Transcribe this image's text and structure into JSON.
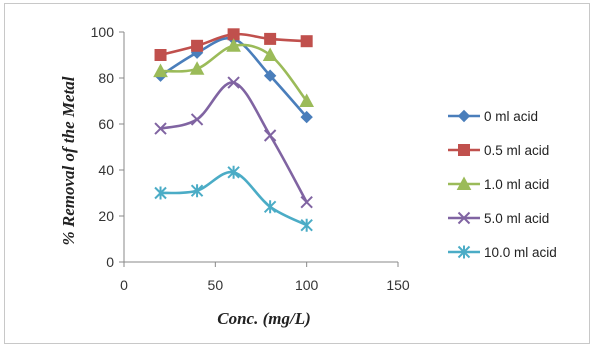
{
  "chart_data": {
    "type": "line",
    "title": "",
    "xlabel": "Conc. (mg/L)",
    "ylabel": "% Removal of the Metal",
    "xlim": [
      0,
      150
    ],
    "ylim": [
      0,
      100
    ],
    "xticks": [
      0,
      50,
      100,
      150
    ],
    "yticks": [
      0,
      20,
      40,
      60,
      80,
      100
    ],
    "grid": false,
    "legend_position": "right",
    "x": [
      20,
      40,
      60,
      80,
      100
    ],
    "series": [
      {
        "name": "0 ml acid",
        "values": [
          81,
          91,
          97,
          81,
          63
        ],
        "color": "#4a7ebb",
        "marker": "diamond"
      },
      {
        "name": "0.5 ml acid",
        "values": [
          90,
          94,
          99,
          97,
          96
        ],
        "color": "#c0504d",
        "marker": "square"
      },
      {
        "name": "1.0 ml acid",
        "values": [
          83,
          84,
          94,
          90,
          70
        ],
        "color": "#9bbb59",
        "marker": "triangle"
      },
      {
        "name": "5.0 ml acid",
        "values": [
          58,
          62,
          78,
          55,
          26
        ],
        "color": "#8064a2",
        "marker": "x"
      },
      {
        "name": "10.0 ml acid",
        "values": [
          30,
          31,
          39,
          24,
          16
        ],
        "color": "#4bacc6",
        "marker": "star"
      }
    ]
  }
}
